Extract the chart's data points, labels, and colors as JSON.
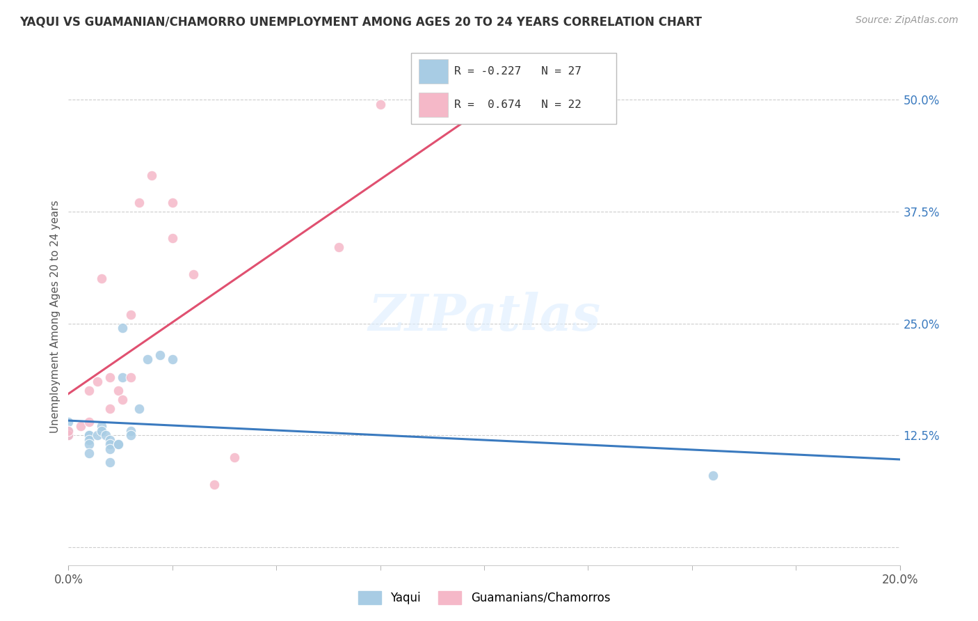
{
  "title": "YAQUI VS GUAMANIAN/CHAMORRO UNEMPLOYMENT AMONG AGES 20 TO 24 YEARS CORRELATION CHART",
  "source": "Source: ZipAtlas.com",
  "ylabel": "Unemployment Among Ages 20 to 24 years",
  "xmin": 0.0,
  "xmax": 0.2,
  "ymin": -0.02,
  "ymax": 0.535,
  "y_ticks": [
    0.0,
    0.125,
    0.25,
    0.375,
    0.5
  ],
  "y_tick_labels": [
    "",
    "12.5%",
    "25.0%",
    "37.5%",
    "50.0%"
  ],
  "legend_r_yaqui": "-0.227",
  "legend_n_yaqui": "27",
  "legend_r_guam": "0.674",
  "legend_n_guam": "22",
  "yaqui_color": "#a8cce4",
  "guam_color": "#f5b8c8",
  "yaqui_line_color": "#3a7abf",
  "guam_line_color": "#e05070",
  "yaqui_points_x": [
    0.0,
    0.0,
    0.0,
    0.005,
    0.005,
    0.005,
    0.005,
    0.005,
    0.007,
    0.008,
    0.008,
    0.009,
    0.01,
    0.01,
    0.01,
    0.01,
    0.012,
    0.012,
    0.013,
    0.013,
    0.015,
    0.015,
    0.017,
    0.019,
    0.022,
    0.025,
    0.155
  ],
  "yaqui_points_y": [
    0.14,
    0.13,
    0.125,
    0.125,
    0.125,
    0.12,
    0.115,
    0.105,
    0.125,
    0.135,
    0.13,
    0.125,
    0.12,
    0.115,
    0.11,
    0.095,
    0.115,
    0.115,
    0.245,
    0.19,
    0.13,
    0.125,
    0.155,
    0.21,
    0.215,
    0.21,
    0.08
  ],
  "guam_points_x": [
    0.0,
    0.0,
    0.003,
    0.005,
    0.005,
    0.007,
    0.008,
    0.01,
    0.01,
    0.012,
    0.013,
    0.015,
    0.015,
    0.017,
    0.02,
    0.025,
    0.025,
    0.03,
    0.035,
    0.04,
    0.065,
    0.075
  ],
  "guam_points_y": [
    0.125,
    0.13,
    0.135,
    0.14,
    0.175,
    0.185,
    0.3,
    0.155,
    0.19,
    0.175,
    0.165,
    0.19,
    0.26,
    0.385,
    0.415,
    0.345,
    0.385,
    0.305,
    0.07,
    0.1,
    0.335,
    0.495
  ]
}
